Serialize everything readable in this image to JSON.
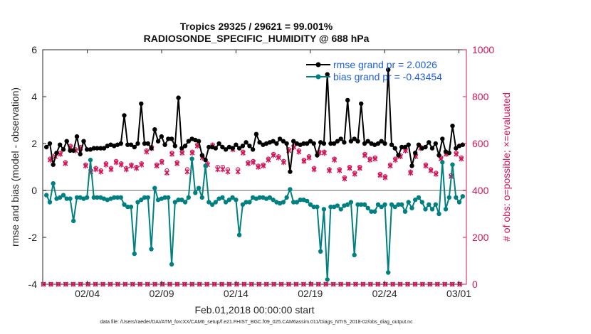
{
  "title_line1": "Tropics 29325 / 29621 = 99.001%",
  "title_line2": "RADIOSONDE_SPECIFIC_HUMIDITY @ 688 hPa",
  "footer": "data file: /Users/raeder/DAI/ATM_forcXX/CAM6_setup/f.e21.FHIST_BGC.f09_025.CAM6assim.011/Diags_NTrS_2018-02/obs_diag_output.nc",
  "colors": {
    "rmse": "#000000",
    "bias": "#008080",
    "obs": "#d4145a",
    "legend_text": "#1f5fdc",
    "zero_line": "#b0b0b0"
  },
  "chart_data": {
    "type": "line",
    "xlabel": "Feb.01,2018 00:00:00 start",
    "ylabel_left": "rmse and bias (model - observation)",
    "ylabel_right": "# of obs: o=possible; ×=evaluated",
    "x_range_days": [
      0,
      28.5
    ],
    "ylim_left": [
      -4,
      6
    ],
    "ylim_right": [
      0,
      1000
    ],
    "x_ticks": [
      {
        "day": 3,
        "label": "02/04"
      },
      {
        "day": 8,
        "label": "02/09"
      },
      {
        "day": 13,
        "label": "02/14"
      },
      {
        "day": 18,
        "label": "02/19"
      },
      {
        "day": 23,
        "label": "02/24"
      },
      {
        "day": 28,
        "label": "03/01"
      }
    ],
    "y_ticks_left": [
      "-4",
      "-2",
      "0",
      "2",
      "4",
      "6"
    ],
    "y_ticks_right": [
      "0",
      "200",
      "400",
      "600",
      "800",
      "1000"
    ],
    "legend": [
      {
        "name": "rmse",
        "label": "rmse grand pr = 2.0026"
      },
      {
        "name": "bias",
        "label": "bias grand pr = -0.43454"
      }
    ],
    "series": [
      {
        "name": "rmse",
        "values": [
          1.85,
          2.0,
          1.1,
          1.6,
          1.95,
          1.75,
          2.1,
          1.7,
          1.7,
          2.3,
          1.55,
          2.1,
          1.75,
          1.75,
          1.8,
          1.8,
          1.8,
          1.8,
          1.9,
          1.95,
          1.9,
          1.95,
          2.0,
          3.2,
          1.95,
          1.95,
          1.85,
          2.0,
          3.7,
          2.0,
          2.0,
          1.8,
          2.6,
          2.1,
          2.3,
          1.95,
          2.2,
          2.2,
          1.9,
          3.95,
          1.8,
          1.9,
          2.1,
          2.2,
          2.15,
          2.1,
          1.5,
          1.3,
          1.85,
          1.85,
          1.8,
          2.0,
          1.85,
          1.75,
          1.85,
          1.8,
          1.95,
          1.8,
          1.9,
          2.05,
          1.9,
          1.75,
          2.4,
          2.05,
          1.95,
          2.0,
          2.05,
          2.1,
          2.0,
          2.2,
          2.1,
          2.0,
          0.8,
          2.1,
          2.0,
          1.95,
          2.0,
          2.0,
          2.1,
          2.0,
          1.5,
          2.05,
          2.0,
          4.95,
          2.0,
          2.0,
          2.1,
          2.2,
          2.05,
          3.85,
          2.1,
          2.2,
          2.1,
          3.7,
          2.0,
          2.1,
          2.0,
          1.95,
          2.0,
          2.1,
          2.0,
          5.15,
          1.95,
          1.8,
          1.5,
          1.85,
          1.85,
          1.95,
          1.05,
          1.6,
          1.95,
          1.8,
          1.85,
          2.05,
          1.8,
          2.0,
          1.5,
          2.2,
          1.65,
          1.6,
          2.75,
          1.8,
          1.9,
          1.95
        ]
      },
      {
        "name": "bias",
        "values": [
          -0.2,
          -0.5,
          0.3,
          -0.35,
          -0.3,
          -0.2,
          -0.35,
          -0.35,
          -1.3,
          -0.3,
          -0.3,
          -0.35,
          -0.3,
          1.3,
          -0.3,
          -0.3,
          -0.3,
          -0.35,
          -0.4,
          -0.35,
          -0.3,
          -0.3,
          -0.3,
          -0.6,
          -0.7,
          -0.7,
          -2.7,
          -0.5,
          -0.4,
          -0.3,
          -0.3,
          -2.5,
          0.1,
          -0.4,
          -0.35,
          -0.3,
          -0.3,
          -3.15,
          -0.5,
          -0.4,
          -0.4,
          -0.5,
          -0.3,
          1.35,
          -0.1,
          0.1,
          -0.3,
          1.05,
          -0.5,
          -0.6,
          -0.5,
          -0.35,
          -0.3,
          -0.5,
          -0.4,
          -0.3,
          -0.4,
          -1.9,
          -0.6,
          -0.5,
          -0.5,
          -0.3,
          -0.35,
          -0.3,
          -0.3,
          -0.35,
          -0.3,
          -0.4,
          -0.5,
          -0.55,
          -0.5,
          -0.3,
          0.05,
          -0.5,
          -0.5,
          -0.4,
          -0.4,
          -0.45,
          -0.6,
          -0.7,
          -0.7,
          -2.6,
          -0.8,
          -3.8,
          -0.7,
          -0.7,
          -0.65,
          -0.8,
          -0.65,
          -0.6,
          -0.5,
          -2.75,
          -0.6,
          -0.6,
          -0.6,
          -0.75,
          -0.9,
          -0.9,
          -0.6,
          -0.7,
          -0.6,
          -3.5,
          -0.6,
          -0.7,
          -0.6,
          -0.6,
          -0.9,
          -0.5,
          -0.75,
          -0.4,
          -0.3,
          -0.5,
          -0.8,
          -0.6,
          -0.8,
          -0.6,
          -1.0,
          1.2,
          -0.8,
          -0.3,
          1.1,
          -0.3,
          -0.5,
          -0.25
        ]
      },
      {
        "name": "obs_evaluated_00Z",
        "values": [
          530,
          545,
          555,
          515,
          585,
          570,
          580,
          505,
          480,
          490,
          480,
          510,
          490,
          520,
          510,
          490,
          505,
          495,
          510,
          565,
          580,
          505,
          520,
          475,
          555,
          515,
          560,
          480,
          560,
          590,
          540,
          510,
          590,
          490,
          490,
          480,
          575,
          480,
          560,
          515,
          520,
          500,
          505,
          530,
          550,
          540,
          520,
          570,
          585,
          565,
          525,
          540,
          490,
          560,
          560,
          485,
          530,
          485,
          450,
          495,
          470,
          495,
          550,
          530,
          535,
          465,
          455,
          505,
          530,
          545,
          570,
          475,
          545,
          580,
          505,
          485,
          470,
          535,
          555,
          460,
          555,
          535
        ]
      },
      {
        "name": "obs_possible_00Z",
        "values": [
          535,
          550,
          560,
          520,
          590,
          575,
          585,
          510,
          485,
          495,
          485,
          515,
          495,
          525,
          515,
          495,
          510,
          500,
          515,
          570,
          585,
          510,
          525,
          485,
          560,
          520,
          565,
          490,
          565,
          595,
          545,
          515,
          595,
          500,
          500,
          490,
          580,
          490,
          565,
          520,
          525,
          505,
          510,
          535,
          555,
          545,
          525,
          575,
          590,
          570,
          530,
          545,
          495,
          565,
          565,
          490,
          535,
          490,
          455,
          500,
          475,
          500,
          555,
          535,
          540,
          470,
          460,
          510,
          535,
          550,
          575,
          480,
          550,
          585,
          510,
          490,
          475,
          540,
          560,
          465,
          560,
          540
        ]
      },
      {
        "name": "obs_evaluated_12Z",
        "values": [
          0,
          0,
          0,
          0,
          0,
          0,
          0,
          0,
          0,
          0,
          0,
          0,
          0,
          0,
          0,
          0,
          0,
          0,
          0,
          0,
          0,
          0,
          0,
          0,
          0,
          0,
          0,
          0,
          0,
          0,
          0,
          0,
          0,
          0,
          0,
          0,
          0,
          0,
          0,
          0,
          0,
          0,
          0,
          0,
          0,
          0,
          0,
          0,
          0,
          0,
          0,
          0,
          0,
          0,
          0,
          0,
          0
        ]
      }
    ]
  }
}
